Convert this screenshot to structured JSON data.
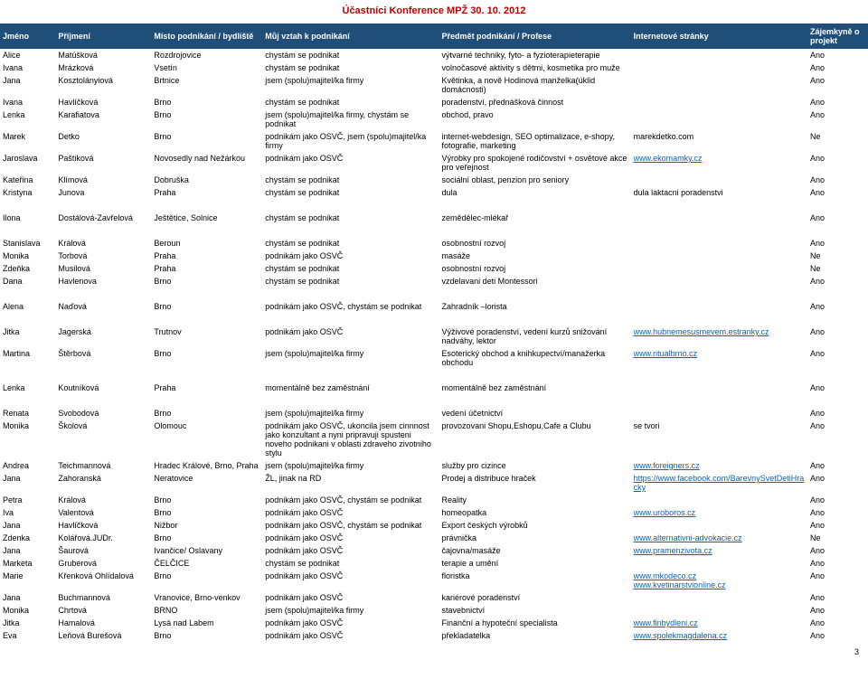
{
  "title": "Účastníci Konference MPŽ 30. 10. 2012",
  "pagenum": "3",
  "headers": [
    "Jméno",
    "Příjmení",
    "Místo podnikání / bydliště",
    "Můj vztah k podnikání",
    "Předmět podnikání / Profese",
    "Internetové stránky",
    "Zájemkyně o projekt"
  ],
  "groups": [
    [
      [
        "Alice",
        "Matúšková",
        "Rozdrojovice",
        "chystám se podnikat",
        "výtvarné techniky, fyto- a fyzioterapieterapie",
        "",
        "Ano"
      ],
      [
        "Ivana",
        "Mrázková",
        "Vsetín",
        "chystám se podnikat",
        "volnočasové aktivity s dětmi, kosmetika pro muže",
        "",
        "Ano"
      ],
      [
        "Jana",
        "Kosztolányiová",
        "Brtnice",
        "jsem (spolu)majitel/ka firmy",
        "Květinka, a nově Hodinová manželka(úklid domácnosti)",
        "",
        "Ano"
      ],
      [
        "Ivana",
        "Havlíčková",
        "Brno",
        "chystám se podnikat",
        "poradenství, přednášková činnost",
        "",
        "Ano"
      ],
      [
        "Lenka",
        "Karafiatova",
        "Brno",
        "jsem (spolu)majitel/ka firmy, chystám se podnikat",
        "obchod, pravo",
        "",
        "Ano"
      ],
      [
        "Marek",
        "Detko",
        "Brno",
        "podnikám jako OSVČ, jsem (spolu)majitel/ka firmy",
        "internet-webdesign, SEO optimalizace, e-shopy, fotografie, marketing",
        "marekdetko.com",
        "Ne"
      ],
      [
        "Jaroslava",
        "Paštiková",
        "Novosedly nad Nežárkou",
        "podnikám jako OSVČ",
        "Výrobky pro spokojené rodičovství + osvětové akce pro veřejnost",
        "www.ekomamky.cz",
        "Ano"
      ],
      [
        "Kateřina",
        "Klímová",
        "Dobruška",
        "chystám se podnikat",
        "sociální oblast, penzion pro seniory",
        "",
        "Ano"
      ],
      [
        "Kristyna",
        "Junova",
        "Praha",
        "chystám se podnikat",
        "dula",
        "dula laktacni poradenstvi",
        "Ano"
      ]
    ],
    [
      [
        "Ilona",
        "Dostálová-Zavřelová",
        "Ještětice, Solnice",
        "chystám se podnikat",
        "zemědělec-mlékař",
        "",
        "Ano"
      ]
    ],
    [
      [
        "Stanislava",
        "Králová",
        "Beroun",
        "chystám se podnikat",
        "osobnostní rozvoj",
        "",
        "Ano"
      ],
      [
        "Monika",
        "Torbová",
        "Praha",
        "podnikám jako OSVČ",
        "masáže",
        "",
        "Ne"
      ],
      [
        "Zdeňka",
        "Musilová",
        "Praha",
        "chystám se podnikat",
        "osobnostní rozvoj",
        "",
        "Ne"
      ],
      [
        "Dana",
        "Havlenova",
        "Brno",
        "chystám se podnikat",
        "vzdelavani deti Montessori",
        "",
        "Ano"
      ]
    ],
    [
      [
        "Alena",
        "Naďová",
        "Brno",
        "podnikám jako OSVČ, chystám se podnikat",
        "Zahradník –lorista",
        "",
        "Ano"
      ]
    ],
    [
      [
        "Jitka",
        "Jagerská",
        "Trutnov",
        "podnikám jako OSVČ",
        "Výživové poradenství, vedení kurzů snižování nadváhy, lektor",
        "www.hubnemesusmevem.estranky.cz",
        "Ano"
      ],
      [
        "Martina",
        "Štěrbová",
        "Brno",
        "jsem (spolu)majitel/ka firmy",
        "Esoterický obchod a knihkupectví/manažerka obchodu",
        "www.ritualbrno.cz",
        "Ano"
      ]
    ],
    [
      [
        "Lenka",
        "Koutníková",
        "Praha",
        "momentálně bez zaměstnání",
        "momentálně bez zaměstnání",
        "",
        "Ano"
      ]
    ],
    [
      [
        "Renata",
        "Svobodová",
        "Brno",
        "jsem (spolu)majitel/ka firmy",
        "vedení účetnictví",
        "",
        "Ano"
      ],
      [
        "Monika",
        "Školová",
        "Olomouc",
        "podnikám jako OSVČ, ukoncila jsem cinnnost jako konzultant a nyni pripravuji spusteni noveho podnikani v oblasti zdraveho zivotniho stylu",
        "provozovani Shopu,Eshopu,Cafe a Clubu",
        "se tvori",
        "Ano"
      ],
      [
        "Andrea",
        "Teichmannová",
        "Hradec Králové, Brno, Praha",
        "jsem (spolu)majitel/ka firmy",
        "služby pro cizince",
        "www.foreigners.cz",
        "Ano"
      ],
      [
        "Jana",
        "Zahoranská",
        "Neratovice",
        "ŽL, jinak na RD",
        "Prodej a distribuce hraček",
        "https://www.facebook.com/BarevnySvetDetiHracky",
        "Ano"
      ],
      [
        "Petra",
        "Králová",
        "Brno",
        "podnikám jako OSVČ, chystám se podnikat",
        "Reality",
        "",
        "Ano"
      ],
      [
        "Iva",
        "Valentová",
        "Brno",
        "podnikám jako OSVČ",
        "homeopatka",
        "www.uroboros.cz",
        "Ano"
      ],
      [
        "Jana",
        "Havlíčková",
        "Nižbor",
        "podnikám jako OSVČ, chystám se podnikat",
        "Export českých výrobků",
        "",
        "Ano"
      ],
      [
        "Zdenka",
        "Kolářová.JUDr.",
        "Brno",
        "podnikám jako OSVČ",
        "právnička",
        "www.alternativni-advokacie.cz",
        "Ne"
      ],
      [
        "Jana",
        "Šaurová",
        "Ivančice/ Oslavany",
        "podnikám jako OSVČ",
        "čajovna/masáže",
        "www.pramenzivota.cz",
        "Ano"
      ],
      [
        "Marketa",
        "Gruberová",
        "ČELČICE",
        "chystám se podnikat",
        "terapie a umění",
        "",
        "Ano"
      ],
      [
        "Marie",
        "Křenková Ohlídalová",
        "Brno",
        "podnikám jako OSVČ",
        "floristka",
        "www.mkodeco.cz\nwww.kvetinarstvionline.cz",
        "Ano"
      ],
      [
        "Jana",
        "Buchmannová",
        "Vranovice, Brno-venkov",
        "podnikám jako OSVČ",
        "kariérové poradenství",
        "",
        "Ano"
      ],
      [
        "Monika",
        "Chrtová",
        "BRNO",
        "jsem (spolu)majitel/ka firmy",
        "stavebnictví",
        "",
        "Ano"
      ],
      [
        "Jitka",
        "Hamalová",
        "Lysá nad Labem",
        "podnikám jako OSVČ",
        "Finanční a hypoteční specialista",
        "www.finbydleni.cz",
        "Ano"
      ],
      [
        "Eva",
        "Leňová Burešová",
        "Brno",
        "podnikám jako OSVČ",
        "překladatelka",
        "www.spolekmagdalena.cz",
        "Ano"
      ]
    ]
  ]
}
